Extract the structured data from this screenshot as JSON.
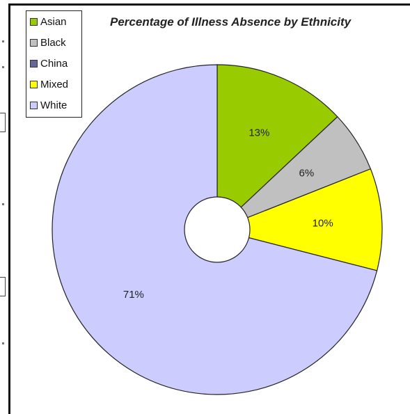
{
  "chart_data": {
    "type": "pie",
    "title": "Percentage of Illness Absence by Ethnicity",
    "legend_position": "top-left",
    "donut_hole": true,
    "slices": [
      {
        "name": "Asian",
        "value": 13,
        "label": "13%",
        "color": "#99cc00"
      },
      {
        "name": "Black",
        "value": 6,
        "label": "6%",
        "color": "#c0c0c0"
      },
      {
        "name": "China",
        "value": 0,
        "label": "",
        "color": "#666699"
      },
      {
        "name": "Mixed",
        "value": 10,
        "label": "10%",
        "color": "#ffff00"
      },
      {
        "name": "White",
        "value": 71,
        "label": "71%",
        "color": "#ccccff"
      }
    ]
  }
}
